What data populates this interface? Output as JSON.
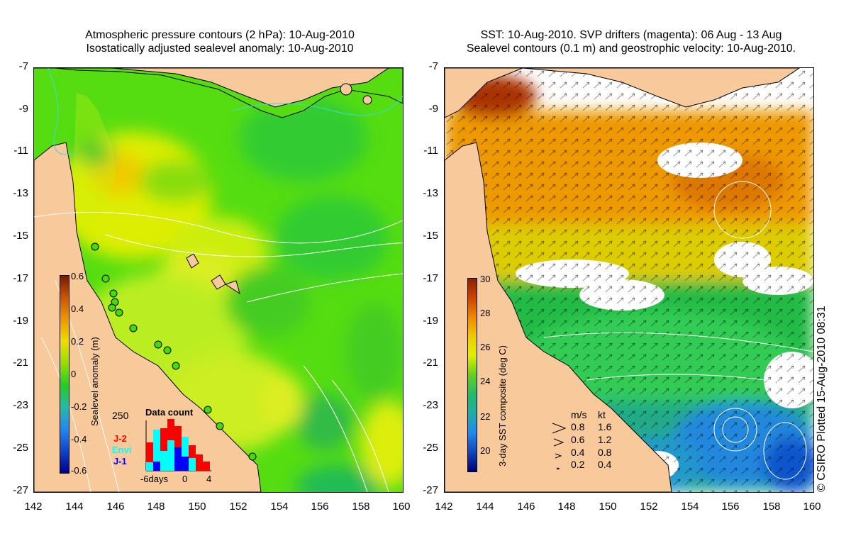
{
  "left_panel": {
    "title_line1": "Atmospheric pressure contours (2 hPa): 10-Aug-2010",
    "title_line2": "Isostatically adjusted sealevel anomaly: 10-Aug-2010",
    "colorbar": {
      "label": "Sealevel anomaly (m)",
      "ticks": [
        "0.6",
        "0.4",
        "0.2",
        "0",
        "-0.2",
        "-0.4",
        "-0.6"
      ]
    },
    "data_count": {
      "title": "Data count",
      "ymax_label": "250",
      "legend": [
        {
          "label": "J-2",
          "color": "#ff0000"
        },
        {
          "label": "Envi",
          "color": "#00ffff"
        },
        {
          "label": "J-1",
          "color": "#0000ff"
        }
      ],
      "x_labels": [
        "-6days",
        "0",
        "4"
      ]
    }
  },
  "right_panel": {
    "title_line1": "SST: 10-Aug-2010. SVP drifters (magenta): 06 Aug - 13 Aug",
    "title_line2": "Sealevel contours (0.1 m) and geostrophic velocity: 10-Aug-2010.",
    "colorbar": {
      "label": "3-day SST composite (deg C)",
      "ticks": [
        "30",
        "28",
        "26",
        "24",
        "22",
        "20"
      ]
    },
    "velocity_legend": {
      "header_ms": "m/s",
      "header_kt": "kt",
      "rows": [
        {
          "ms": "0.8",
          "kt": "1.6"
        },
        {
          "ms": "0.6",
          "kt": "1.2"
        },
        {
          "ms": "0.4",
          "kt": "0.8"
        },
        {
          "ms": "0.2",
          "kt": "0.4"
        }
      ]
    }
  },
  "axes": {
    "y_ticks": [
      "-7",
      "-9",
      "-11",
      "-13",
      "-15",
      "-17",
      "-19",
      "-21",
      "-23",
      "-25",
      "-27"
    ],
    "x_ticks": [
      "142",
      "144",
      "146",
      "148",
      "150",
      "152",
      "154",
      "156",
      "158",
      "160"
    ]
  },
  "credit": "© CSIRO Plotted 15-Aug-2010 08:31",
  "colors": {
    "land": "#f7c99b",
    "sla_green": "#44dd00",
    "sla_yellow": "#ddee00",
    "sst_orange": "#ee8800",
    "sst_green": "#22bb44",
    "sst_blue": "#2299dd"
  }
}
